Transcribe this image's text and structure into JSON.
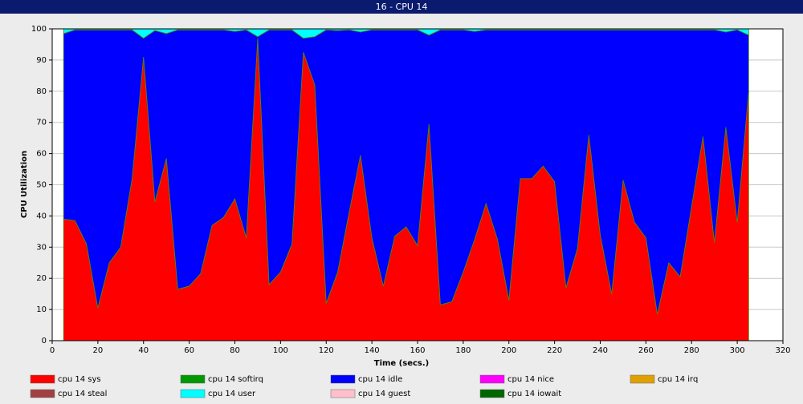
{
  "chart_data": {
    "type": "stacked-area",
    "title": "16 - CPU 14",
    "xlabel": "Time (secs.)",
    "ylabel": "CPU Utilization",
    "x": [
      5,
      10,
      15,
      20,
      25,
      30,
      35,
      40,
      45,
      50,
      55,
      60,
      65,
      70,
      75,
      80,
      85,
      90,
      95,
      100,
      105,
      110,
      115,
      120,
      125,
      130,
      135,
      140,
      145,
      150,
      155,
      160,
      165,
      170,
      175,
      180,
      185,
      190,
      195,
      200,
      205,
      210,
      215,
      220,
      225,
      230,
      235,
      240,
      245,
      250,
      255,
      260,
      265,
      270,
      275,
      280,
      285,
      290,
      295,
      300,
      305
    ],
    "xlim": [
      0,
      320
    ],
    "xticks": [
      0,
      20,
      40,
      60,
      80,
      100,
      120,
      140,
      160,
      180,
      200,
      220,
      240,
      260,
      280,
      300,
      320
    ],
    "ylim": [
      0,
      100
    ],
    "yticks": [
      0,
      10,
      20,
      30,
      40,
      50,
      60,
      70,
      80,
      90,
      100
    ],
    "grid": true,
    "series": [
      {
        "name": "cpu 14 sys",
        "color": "#ff0000",
        "values": [
          39,
          38.5,
          31,
          10.5,
          25,
          30,
          52,
          91,
          44.5,
          58.5,
          16.5,
          17.5,
          21.5,
          37,
          39.5,
          45.5,
          33,
          97,
          18,
          22,
          31,
          92.5,
          82,
          12,
          22,
          41,
          59.5,
          33,
          17.5,
          33.5,
          36.5,
          30.5,
          69.5,
          11.5,
          12.5,
          22,
          32.5,
          44,
          32.5,
          13,
          52,
          52,
          56,
          51,
          17,
          29.5,
          66,
          34,
          15,
          51.5,
          38,
          33,
          8.5,
          25,
          20.5,
          43,
          65.5,
          31.5,
          68.5,
          38,
          80
        ]
      },
      {
        "name": "cpu 14 softirq",
        "color": "#009900",
        "values": [
          0,
          0,
          0,
          0,
          0,
          0,
          0,
          0,
          0,
          0,
          0,
          0,
          0,
          0,
          0,
          0,
          0,
          0,
          0,
          0,
          0,
          0,
          0,
          0,
          0,
          0,
          0,
          0,
          0,
          0,
          0,
          0,
          0,
          0,
          0,
          0,
          0,
          0,
          0,
          0,
          0,
          0,
          0,
          0,
          0,
          0,
          0,
          0,
          0,
          0,
          0,
          0,
          0,
          0,
          0,
          0,
          0,
          0,
          0,
          0,
          0
        ]
      },
      {
        "name": "cpu 14 idle",
        "color": "#0000ff",
        "values": [
          59.5,
          61.2,
          68.7,
          89.2,
          74.7,
          69.7,
          47.7,
          6,
          55,
          40,
          83.2,
          82.2,
          78.2,
          62.7,
          60.2,
          53.7,
          66.7,
          0.5,
          81.7,
          77.7,
          68.7,
          4.5,
          15.5,
          87.7,
          77.5,
          58.7,
          39.5,
          66.7,
          82.2,
          66.2,
          63.2,
          69.2,
          28.5,
          88.2,
          87.2,
          77.7,
          66.7,
          55.7,
          67.2,
          86.7,
          47.7,
          47.7,
          43.7,
          48.7,
          82.7,
          70.2,
          33.7,
          65.7,
          84.7,
          48.2,
          61.7,
          66.7,
          91.2,
          74.7,
          79.2,
          56.7,
          34.2,
          68.2,
          30.5,
          61.7,
          18
        ]
      },
      {
        "name": "cpu 14 nice",
        "color": "#ff00ff",
        "values": [
          0,
          0,
          0,
          0,
          0,
          0,
          0,
          0,
          0,
          0,
          0,
          0,
          0,
          0,
          0,
          0,
          0,
          0,
          0,
          0,
          0,
          0,
          0,
          0,
          0,
          0,
          0,
          0,
          0,
          0,
          0,
          0,
          0,
          0,
          0,
          0,
          0,
          0,
          0,
          0,
          0,
          0,
          0,
          0,
          0,
          0,
          0,
          0,
          0,
          0,
          0,
          0,
          0,
          0,
          0,
          0,
          0,
          0,
          0,
          0,
          0
        ]
      },
      {
        "name": "cpu 14 irq",
        "color": "#e0a000",
        "values": [
          0,
          0,
          0,
          0,
          0,
          0,
          0,
          0,
          0,
          0,
          0,
          0,
          0,
          0,
          0,
          0,
          0,
          0,
          0,
          0,
          0,
          0,
          0,
          0,
          0,
          0,
          0,
          0,
          0,
          0,
          0,
          0,
          0,
          0,
          0,
          0,
          0,
          0,
          0,
          0,
          0,
          0,
          0,
          0,
          0,
          0,
          0,
          0,
          0,
          0,
          0,
          0,
          0,
          0,
          0,
          0,
          0,
          0,
          0,
          0,
          0
        ]
      },
      {
        "name": "cpu 14 steal",
        "color": "#a04040",
        "values": [
          0,
          0,
          0,
          0,
          0,
          0,
          0,
          0,
          0,
          0,
          0,
          0,
          0,
          0,
          0,
          0,
          0,
          0,
          0,
          0,
          0,
          0,
          0,
          0,
          0,
          0,
          0,
          0,
          0,
          0,
          0,
          0,
          0,
          0,
          0,
          0,
          0,
          0,
          0,
          0,
          0,
          0,
          0,
          0,
          0,
          0,
          0,
          0,
          0,
          0,
          0,
          0,
          0,
          0,
          0,
          0,
          0,
          0,
          0,
          0,
          0
        ]
      },
      {
        "name": "cpu 14 user",
        "color": "#00ffff",
        "values": [
          1.5,
          0.3,
          0.3,
          0.3,
          0.3,
          0.3,
          0.3,
          3,
          0.5,
          1.5,
          0.3,
          0.3,
          0.3,
          0.3,
          0.3,
          0.8,
          0.3,
          2.5,
          0.3,
          0.3,
          0.3,
          3,
          2.5,
          0.3,
          0.5,
          0.3,
          1,
          0.3,
          0.3,
          0.3,
          0.3,
          0.3,
          2,
          0.3,
          0.3,
          0.3,
          0.8,
          0.3,
          0.3,
          0.3,
          0.3,
          0.3,
          0.3,
          0.3,
          0.3,
          0.3,
          0.3,
          0.3,
          0.3,
          0.3,
          0.3,
          0.3,
          0.3,
          0.3,
          0.3,
          0.3,
          0.3,
          0.3,
          1,
          0.3,
          2
        ]
      },
      {
        "name": "cpu 14 guest",
        "color": "#ffc0cb",
        "values": [
          0,
          0,
          0,
          0,
          0,
          0,
          0,
          0,
          0,
          0,
          0,
          0,
          0,
          0,
          0,
          0,
          0,
          0,
          0,
          0,
          0,
          0,
          0,
          0,
          0,
          0,
          0,
          0,
          0,
          0,
          0,
          0,
          0,
          0,
          0,
          0,
          0,
          0,
          0,
          0,
          0,
          0,
          0,
          0,
          0,
          0,
          0,
          0,
          0,
          0,
          0,
          0,
          0,
          0,
          0,
          0,
          0,
          0,
          0,
          0,
          0
        ]
      },
      {
        "name": "cpu 14 iowait",
        "color": "#006600",
        "values": [
          0,
          0,
          0,
          0,
          0,
          0,
          0,
          0,
          0,
          0,
          0,
          0,
          0,
          0,
          0,
          0,
          0,
          0,
          0,
          0,
          0,
          0,
          0,
          0,
          0,
          0,
          0,
          0,
          0,
          0,
          0,
          0,
          0,
          0,
          0,
          0,
          0,
          0,
          0,
          0,
          0,
          0,
          0,
          0,
          0,
          0,
          0,
          0,
          0,
          0,
          0,
          0,
          0,
          0,
          0,
          0,
          0,
          0,
          0,
          0,
          0
        ]
      }
    ]
  }
}
